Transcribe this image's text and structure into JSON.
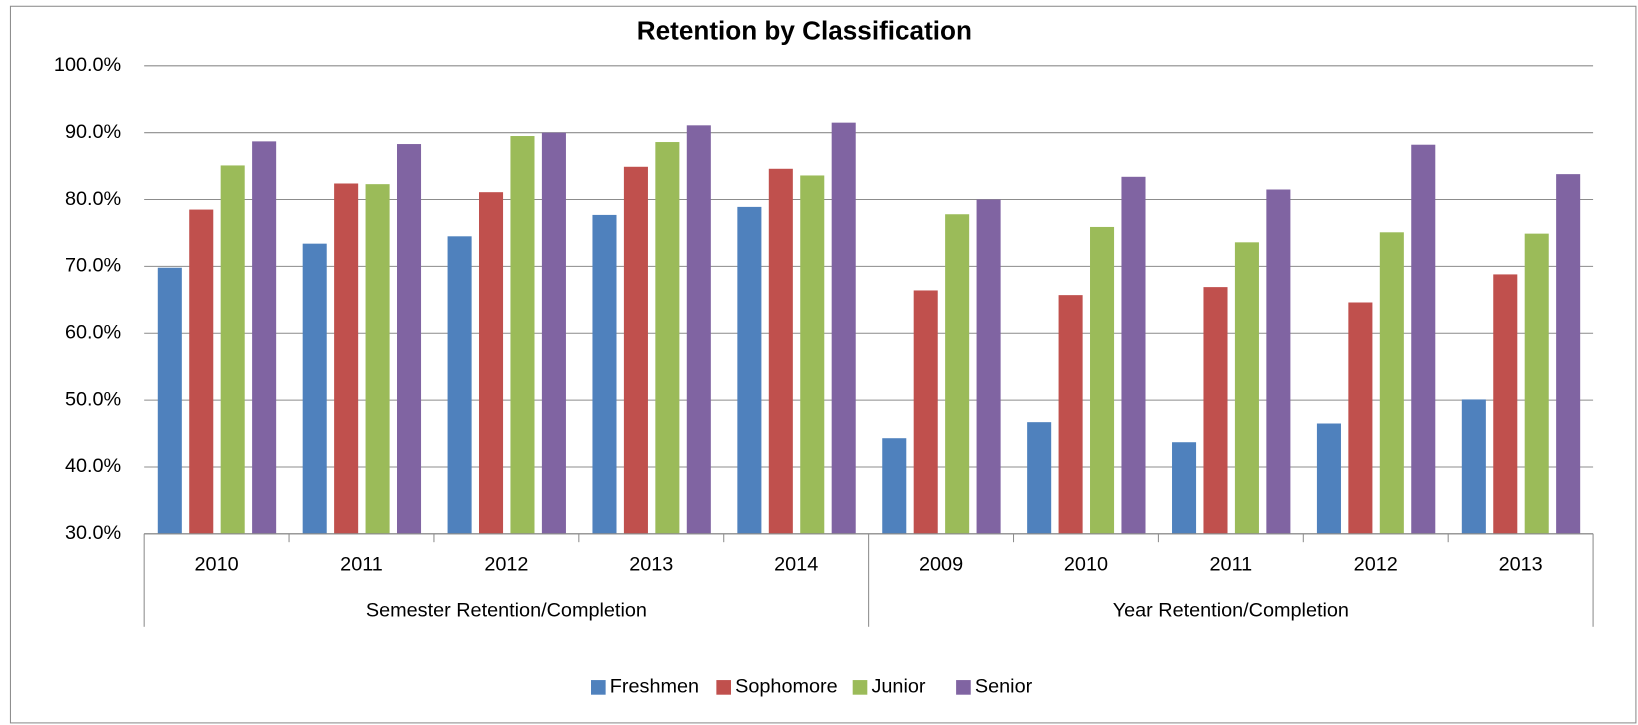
{
  "chart_data": {
    "type": "bar",
    "title": "Retention by Classification",
    "groups": [
      {
        "label": "Semester Retention/Completion",
        "categories": [
          "2010",
          "2011",
          "2012",
          "2013",
          "2014"
        ]
      },
      {
        "label": "Year Retention/Completion",
        "categories": [
          "2009",
          "2010",
          "2011",
          "2012",
          "2013"
        ]
      }
    ],
    "series": [
      {
        "name": "Freshmen",
        "color": "#4f81bd",
        "values": [
          69.8,
          73.4,
          74.5,
          77.7,
          78.9,
          44.3,
          46.7,
          43.7,
          46.5,
          50.1
        ]
      },
      {
        "name": "Sophomore",
        "color": "#c0504d",
        "values": [
          78.5,
          82.4,
          81.1,
          84.9,
          84.6,
          66.4,
          65.7,
          66.9,
          64.6,
          68.8
        ]
      },
      {
        "name": "Junior",
        "color": "#9bbb59",
        "values": [
          85.1,
          82.3,
          89.5,
          88.6,
          83.6,
          77.8,
          75.9,
          73.6,
          75.1,
          74.9
        ]
      },
      {
        "name": "Senior",
        "color": "#8064a2",
        "values": [
          88.7,
          88.3,
          90.0,
          91.1,
          91.5,
          80.0,
          83.4,
          81.5,
          88.2,
          83.8
        ]
      }
    ],
    "ylim": [
      30,
      100
    ],
    "yticks": [
      {
        "value": 30,
        "label": "30.0%"
      },
      {
        "value": 40,
        "label": "40.0%"
      },
      {
        "value": 50,
        "label": "50.0%"
      },
      {
        "value": 60,
        "label": "60.0%"
      },
      {
        "value": 70,
        "label": "70.0%"
      },
      {
        "value": 80,
        "label": "80.0%"
      },
      {
        "value": 90,
        "label": "90.0%"
      },
      {
        "value": 100,
        "label": "100.0%"
      }
    ],
    "grid": true,
    "legend": "bottom"
  }
}
